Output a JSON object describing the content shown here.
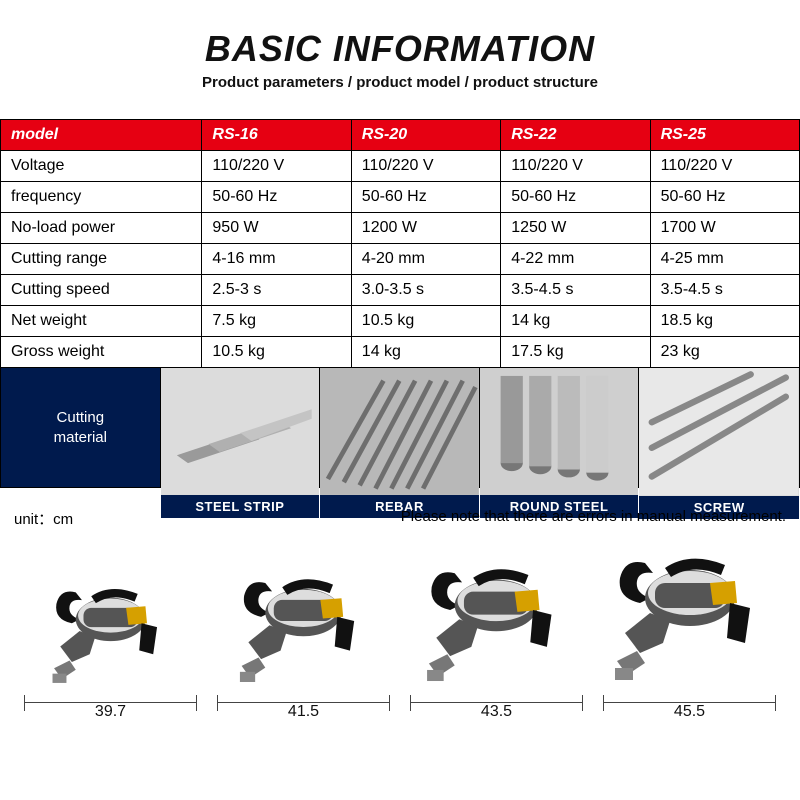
{
  "header": {
    "title": "BASIC INFORMATION",
    "subtitle": "Product parameters / product model / product structure"
  },
  "table": {
    "header_bg": "#e60012",
    "header_text_color": "#ffffff",
    "border_color": "#000000",
    "columns": [
      "model",
      "RS-16",
      "RS-20",
      "RS-22",
      "RS-25"
    ],
    "rows": [
      [
        "Voltage",
        "110/220 V",
        "110/220 V",
        "110/220 V",
        "110/220 V"
      ],
      [
        "frequency",
        "50-60 Hz",
        "50-60 Hz",
        "50-60 Hz",
        "50-60 Hz"
      ],
      [
        "No-load power",
        "950 W",
        "1200 W",
        "1250 W",
        "1700 W"
      ],
      [
        "Cutting range",
        "4-16 mm",
        "4-20 mm",
        "4-22 mm",
        "4-25 mm"
      ],
      [
        "Cutting speed",
        "2.5-3 s",
        "3.0-3.5 s",
        "3.5-4.5 s",
        "3.5-4.5 s"
      ],
      [
        "Net weight",
        "7.5 kg",
        "10.5 kg",
        "14 kg",
        "18.5 kg"
      ],
      [
        "Gross weight",
        "10.5 kg",
        "14 kg",
        "17.5 kg",
        "23 kg"
      ]
    ]
  },
  "materials": {
    "label": "Cutting\nmaterial",
    "label_bg": "#001a4d",
    "label_text_color": "#ffffff",
    "items": [
      {
        "caption": "STEEL STRIP"
      },
      {
        "caption": "REBAR"
      },
      {
        "caption": "ROUND STEEL"
      },
      {
        "caption": "SCREW"
      }
    ]
  },
  "dimensions": {
    "unit_label": "unit：cm",
    "note": "Please note that there are errors in manual measurement.",
    "tools": [
      {
        "length": "39.7",
        "scale": 0.88
      },
      {
        "length": "41.5",
        "scale": 0.92
      },
      {
        "length": "43.5",
        "scale": 0.96
      },
      {
        "length": "45.5",
        "scale": 1.0
      }
    ],
    "tool_colors": {
      "body": "#555",
      "highlight": "#ddd",
      "accent": "#d6a000",
      "handle": "#111"
    }
  }
}
